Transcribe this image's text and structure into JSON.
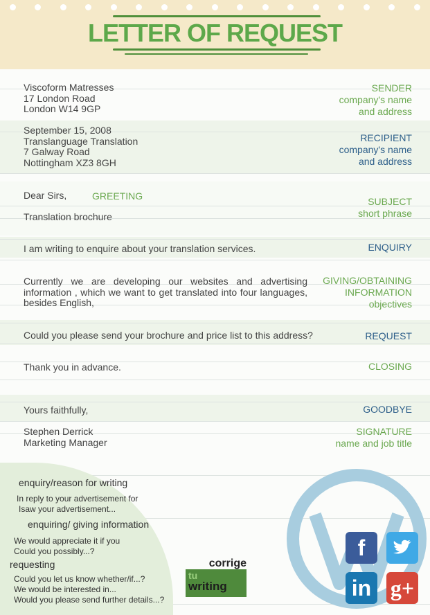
{
  "title": "LETTER OF REQUEST",
  "sections": [
    {
      "text": [
        "Viscoform Matresses",
        "17 London Road",
        "London W14 9GP"
      ],
      "label": [
        "SENDER",
        "company's name",
        "and address"
      ]
    },
    {
      "text": [
        "September 15, 2008",
        "Translanguage Translation",
        "7 Galway Road",
        "Nottingham XZ3 8GH"
      ],
      "label": [
        "RECIPIENT",
        "company's name",
        "and address"
      ]
    },
    {
      "text": [
        "Dear Sirs,"
      ],
      "inline_label": "GREETING"
    },
    {
      "text": [
        "Translation brochure"
      ],
      "label": [
        "SUBJECT",
        "short phrase"
      ]
    },
    {
      "text": [
        "I am writing to enquire about  your translation services."
      ],
      "label": [
        "ENQUIRY"
      ]
    },
    {
      "text": [
        "Currently we are developing our websites and advertising information , which we want to get translated into four languages, besides English,"
      ],
      "label": [
        "GIVING/OBTAINING",
        "INFORMATION",
        "objectives"
      ]
    },
    {
      "text": [
        "Could you please send your brochure and price list to this address?"
      ],
      "label": [
        "REQUEST"
      ]
    },
    {
      "text": [
        "Thank you in advance."
      ],
      "label": [
        "CLOSING"
      ]
    },
    {
      "text": [
        "Yours faithfully,"
      ],
      "label": [
        "GOODBYE"
      ]
    },
    {
      "text": [
        "Stephen Derrick",
        "Marketing Manager"
      ],
      "label": [
        "SIGNATURE",
        "name and job title"
      ]
    }
  ],
  "phrases": {
    "h1": "enquiry/reason for writing",
    "p1": [
      "In reply to your advertisement for",
      "Isaw your advertisement..."
    ],
    "h2": "enquiring/ giving information",
    "p2": [
      "We would appreciate it if you",
      "Could you possibly...?"
    ],
    "h3": "requesting",
    "p3": [
      "Could you let us know whether/if...?",
      "We would be interested in...",
      "Would you please send further details...?"
    ]
  },
  "logo": {
    "line1": "corrige",
    "line2": "tu",
    "line3": "writing"
  },
  "social": {
    "facebook": "f",
    "linkedin": "in",
    "googleplus": "g+"
  },
  "colors": {
    "green": "#6aa84f",
    "blue": "#2e5f8a",
    "header": "#f5e9c9"
  }
}
